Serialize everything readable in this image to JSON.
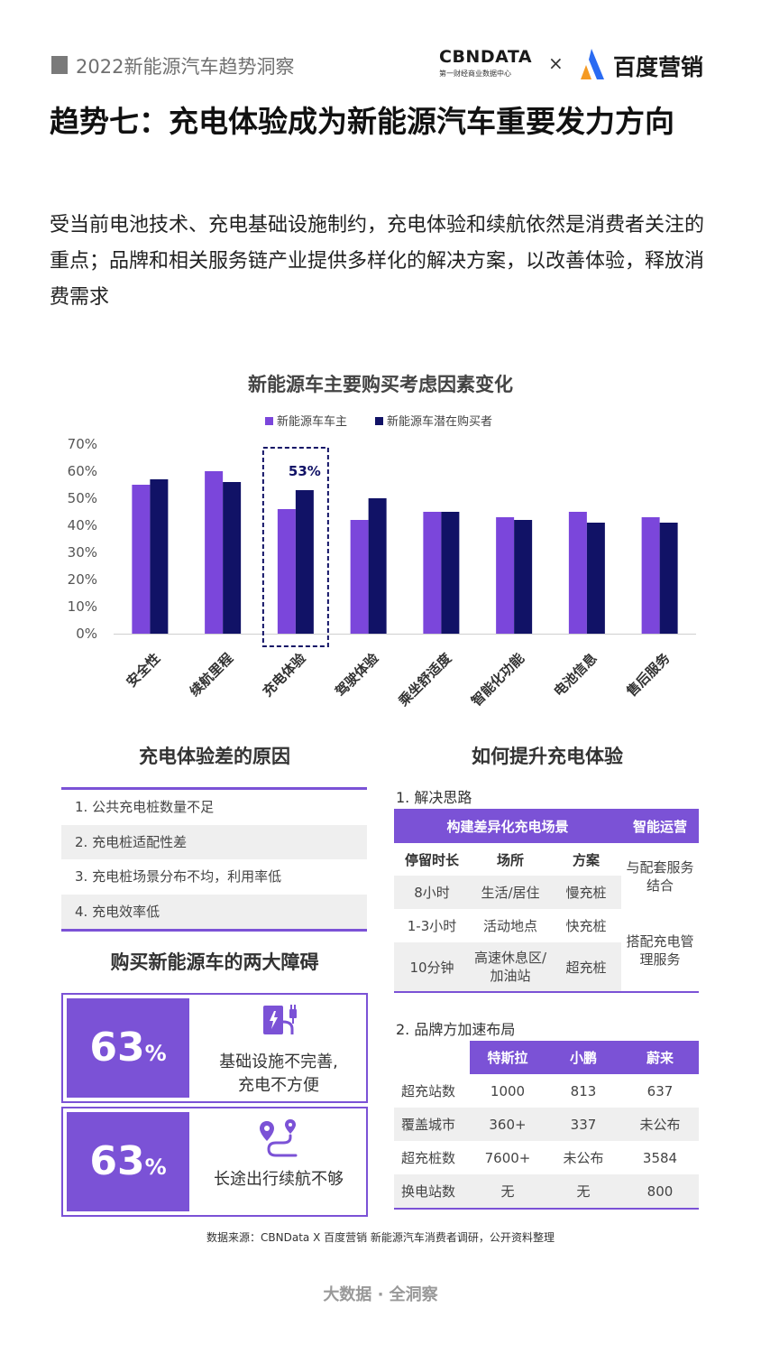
{
  "header": {
    "report_title": "2022新能源汽车趋势洞察",
    "cbn_logo": "CBNDATA",
    "cbn_subtitle": "第一财经商业数据中心",
    "times": "×",
    "baidu_logo_text": "百度营销"
  },
  "title": "趋势七：充电体验成为新能源汽车重要发力方向",
  "subtitle": "受当前电池技术、充电基础设施制约，充电体验和续航依然是消费者关注的重点；品牌和相关服务链产业提供多样化的解决方案，以改善体验，释放消费需求",
  "chart_data": {
    "type": "bar",
    "title": "新能源车主要购买考虑因素变化",
    "categories": [
      "安全性",
      "续航里程",
      "充电体验",
      "驾驶体验",
      "乘坐舒适度",
      "智能化功能",
      "电池信息",
      "售后服务"
    ],
    "series": [
      {
        "name": "新能源车车主",
        "color": "#7b46db",
        "values": [
          55,
          60,
          46,
          42,
          45,
          43,
          45,
          43
        ]
      },
      {
        "name": "新能源车潜在购买者",
        "color": "#111266",
        "values": [
          57,
          56,
          53,
          50,
          45,
          42,
          41,
          41
        ]
      }
    ],
    "yticks": [
      "70%",
      "60%",
      "50%",
      "40%",
      "30%",
      "20%",
      "10%",
      "0%"
    ],
    "ylim": [
      0,
      70
    ],
    "highlight_index": 2,
    "highlight_label": "53%",
    "legend": "top-center",
    "grid": false
  },
  "reasons": {
    "title": "充电体验差的原因",
    "items": [
      "1. 公共充电桩数量不足",
      "2. 充电桩适配性差",
      "3. 充电桩场景分布不均，利用率低",
      "4. 充电效率低"
    ]
  },
  "barriers": {
    "title": "购买新能源车的两大障碍",
    "items": [
      {
        "value": "63",
        "unit": "%",
        "text_line1": "基础设施不完善,",
        "text_line2": "充电不方便",
        "icon": "charging-station-icon"
      },
      {
        "value": "63",
        "unit": "%",
        "text_line1": "长途出行续航不够",
        "text_line2": "",
        "icon": "route-pin-icon"
      }
    ]
  },
  "improve": {
    "title": "如何提升充电体验",
    "solution_label": "1. 解决思路",
    "solution_head_left": "构建差异化充电场景",
    "solution_head_right": "智能运营",
    "solution_cols": [
      "停留时长",
      "场所",
      "方案"
    ],
    "solution_rows": [
      [
        "8小时",
        "生活/居住",
        "慢充桩"
      ],
      [
        "1-3小时",
        "活动地点",
        "快充桩"
      ],
      [
        "10分钟",
        "高速休息区/加油站",
        "超充桩"
      ]
    ],
    "solution_side_1": "与配套服务结合",
    "solution_side_2": "搭配充电管理服务",
    "brand_label": "2. 品牌方加速布局",
    "brand_cols": [
      "",
      "特斯拉",
      "小鹏",
      "蔚来"
    ],
    "brand_rows": [
      [
        "超充站数",
        "1000",
        "813",
        "637"
      ],
      [
        "覆盖城市",
        "360+",
        "337",
        "未公布"
      ],
      [
        "超充桩数",
        "7600+",
        "未公布",
        "3584"
      ],
      [
        "换电站数",
        "无",
        "无",
        "800"
      ]
    ]
  },
  "source": "数据来源：CBNData X 百度营销 新能源汽车消费者调研，公开资料整理",
  "footer": "大数据 · 全洞察"
}
